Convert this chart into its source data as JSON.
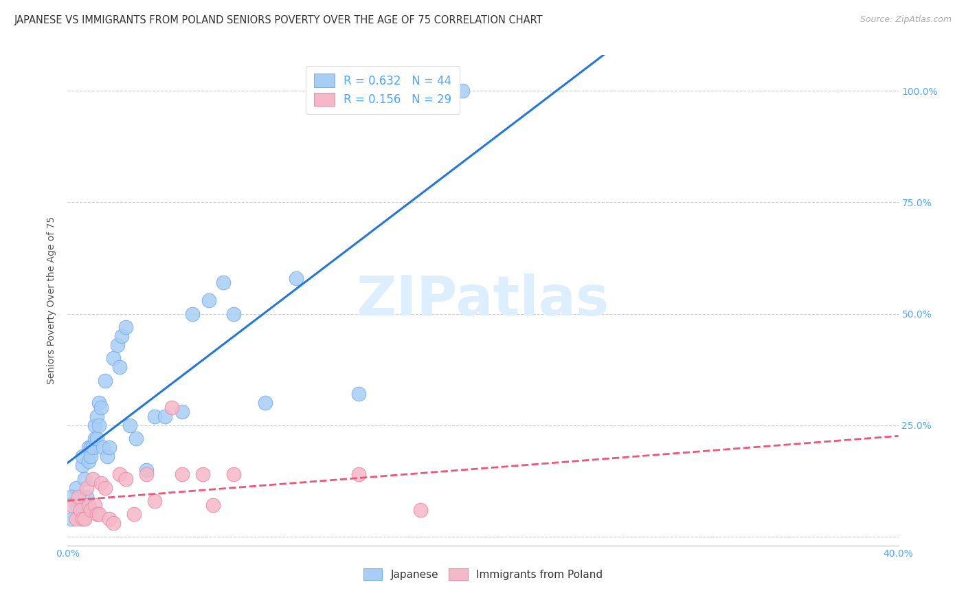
{
  "title": "JAPANESE VS IMMIGRANTS FROM POLAND SENIORS POVERTY OVER THE AGE OF 75 CORRELATION CHART",
  "source": "Source: ZipAtlas.com",
  "ylabel": "Seniors Poverty Over the Age of 75",
  "xlim": [
    0.0,
    0.4
  ],
  "ylim": [
    -0.02,
    1.08
  ],
  "yticks": [
    0.0,
    0.25,
    0.5,
    0.75,
    1.0
  ],
  "ytick_labels": [
    "",
    "25.0%",
    "50.0%",
    "75.0%",
    "100.0%"
  ],
  "xtick_labels": [
    "0.0%",
    "",
    "",
    "",
    "40.0%"
  ],
  "xticks": [
    0.0,
    0.1,
    0.2,
    0.3,
    0.4
  ],
  "title_color": "#333333",
  "title_fontsize": 10.5,
  "source_color": "#aaaaaa",
  "tick_label_color": "#4da6ff",
  "watermark": "ZIPatlas",
  "watermark_color": "#ddeeff",
  "legend_r1": "R = 0.632   N = 44",
  "legend_r2": "R = 0.156   N = 29",
  "legend_color": "#4da6ff",
  "japanese_color": "#a8cef5",
  "japanese_edge": "#7aadee",
  "poland_color": "#f5b8c8",
  "poland_edge": "#ee8aaa",
  "blue_line_color": "#2277dd",
  "pink_line_color": "#ee5577",
  "background_color": "#ffffff",
  "grid_color": "#cccccc",
  "japanese_x": [
    0.002,
    0.004,
    0.004,
    0.006,
    0.007,
    0.007,
    0.008,
    0.009,
    0.01,
    0.01,
    0.011,
    0.011,
    0.012,
    0.013,
    0.013,
    0.014,
    0.014,
    0.015,
    0.015,
    0.016,
    0.017,
    0.018,
    0.019,
    0.02,
    0.022,
    0.024,
    0.025,
    0.026,
    0.028,
    0.03,
    0.033,
    0.038,
    0.042,
    0.047,
    0.055,
    0.06,
    0.068,
    0.075,
    0.08,
    0.095,
    0.11,
    0.14,
    0.19,
    0.002
  ],
  "japanese_y": [
    0.04,
    0.07,
    0.11,
    0.06,
    0.16,
    0.18,
    0.13,
    0.09,
    0.17,
    0.2,
    0.2,
    0.18,
    0.2,
    0.25,
    0.22,
    0.27,
    0.22,
    0.3,
    0.25,
    0.29,
    0.2,
    0.35,
    0.18,
    0.2,
    0.4,
    0.43,
    0.38,
    0.45,
    0.47,
    0.25,
    0.22,
    0.15,
    0.27,
    0.27,
    0.28,
    0.5,
    0.53,
    0.57,
    0.5,
    0.3,
    0.58,
    0.32,
    1.0,
    0.09
  ],
  "poland_x": [
    0.002,
    0.004,
    0.005,
    0.006,
    0.007,
    0.008,
    0.009,
    0.01,
    0.011,
    0.012,
    0.013,
    0.014,
    0.015,
    0.016,
    0.018,
    0.02,
    0.022,
    0.025,
    0.028,
    0.032,
    0.038,
    0.042,
    0.05,
    0.055,
    0.065,
    0.07,
    0.08,
    0.14,
    0.17
  ],
  "poland_y": [
    0.07,
    0.04,
    0.09,
    0.06,
    0.04,
    0.04,
    0.11,
    0.07,
    0.06,
    0.13,
    0.07,
    0.05,
    0.05,
    0.12,
    0.11,
    0.04,
    0.03,
    0.14,
    0.13,
    0.05,
    0.14,
    0.08,
    0.29,
    0.14,
    0.14,
    0.07,
    0.14,
    0.14,
    0.06
  ]
}
